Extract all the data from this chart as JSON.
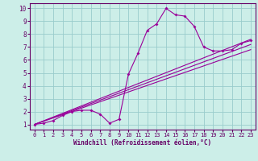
{
  "title": "",
  "xlabel": "Windchill (Refroidissement éolien,°C)",
  "ylabel": "",
  "bg_color": "#cceee8",
  "line_color": "#990099",
  "grid_color": "#99cccc",
  "xlim": [
    -0.5,
    23.5
  ],
  "ylim": [
    0.6,
    10.4
  ],
  "xticks": [
    0,
    1,
    2,
    3,
    4,
    5,
    6,
    7,
    8,
    9,
    10,
    11,
    12,
    13,
    14,
    15,
    16,
    17,
    18,
    19,
    20,
    21,
    22,
    23
  ],
  "yticks": [
    1,
    2,
    3,
    4,
    5,
    6,
    7,
    8,
    9,
    10
  ],
  "main_x": [
    0,
    1,
    2,
    3,
    4,
    5,
    6,
    7,
    8,
    9,
    10,
    11,
    12,
    13,
    14,
    15,
    16,
    17,
    18,
    19,
    20,
    21,
    22,
    23
  ],
  "main_y": [
    1.0,
    1.1,
    1.3,
    1.7,
    2.0,
    2.1,
    2.1,
    1.8,
    1.1,
    1.4,
    4.9,
    6.5,
    8.3,
    8.8,
    10.0,
    9.5,
    9.4,
    8.6,
    7.0,
    6.7,
    6.7,
    6.8,
    7.3,
    7.5
  ],
  "line2_x": [
    0,
    23
  ],
  "line2_y": [
    1.0,
    7.2
  ],
  "line3_x": [
    0,
    23
  ],
  "line3_y": [
    1.0,
    7.6
  ],
  "line4_x": [
    0,
    23
  ],
  "line4_y": [
    1.0,
    6.8
  ]
}
